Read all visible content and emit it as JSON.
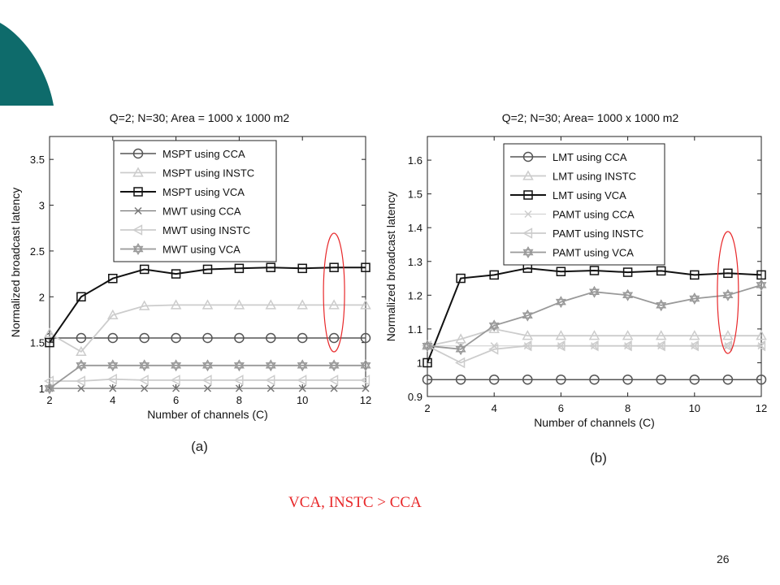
{
  "slide": {
    "caption": "VCA, INSTC > CCA",
    "page_number": "26",
    "accent_color": "#0e6b6b",
    "highlight_color": "#e8282a"
  },
  "chart_data": [
    {
      "type": "line",
      "panel_label": "(a)",
      "title": "Q=2; N=30; Area = 1000 x 1000 m2",
      "xlabel": "Number of channels (C)",
      "ylabel": "Normalized broadcast latency",
      "xlim": [
        2,
        12
      ],
      "ylim": [
        1,
        3.75
      ],
      "xticks": [
        2,
        4,
        6,
        8,
        10,
        12
      ],
      "yticks": [
        1,
        1.5,
        2,
        2.5,
        3,
        3.5
      ],
      "ytick_labels": [
        "1",
        "1.5",
        "2",
        "2.5",
        "3",
        "3.5"
      ],
      "grid": false,
      "legend_position": "top-center",
      "highlight_x": 11,
      "x": [
        2,
        3,
        4,
        5,
        6,
        7,
        8,
        9,
        10,
        11,
        12
      ],
      "series": [
        {
          "name": "MSPT using CCA",
          "marker": "circle",
          "color": "#555555",
          "width": 1.5,
          "values": [
            1.55,
            1.55,
            1.55,
            1.55,
            1.55,
            1.55,
            1.55,
            1.55,
            1.55,
            1.55,
            1.55
          ]
        },
        {
          "name": "MSPT using INSTC",
          "marker": "triangle-up",
          "color": "#cccccc",
          "width": 1.8,
          "values": [
            1.6,
            1.4,
            1.8,
            1.9,
            1.91,
            1.91,
            1.91,
            1.91,
            1.91,
            1.91,
            1.91
          ]
        },
        {
          "name": "MSPT using VCA",
          "marker": "square",
          "color": "#111111",
          "width": 2,
          "values": [
            1.5,
            2.0,
            2.2,
            2.3,
            2.25,
            2.3,
            2.31,
            2.32,
            2.31,
            2.32,
            2.32
          ]
        },
        {
          "name": "MWT using CCA",
          "marker": "x",
          "color": "#777777",
          "width": 1.2,
          "values": [
            1.0,
            1.0,
            1.0,
            1.0,
            1.0,
            1.0,
            1.0,
            1.0,
            1.0,
            1.0,
            1.0
          ]
        },
        {
          "name": "MWT using INSTC",
          "marker": "triangle-left",
          "color": "#cccccc",
          "width": 1.8,
          "values": [
            1.08,
            1.08,
            1.1,
            1.09,
            1.09,
            1.09,
            1.09,
            1.09,
            1.09,
            1.09,
            1.09
          ]
        },
        {
          "name": "MWT using VCA",
          "marker": "hexagram",
          "color": "#999999",
          "width": 1.8,
          "values": [
            1.0,
            1.25,
            1.25,
            1.25,
            1.25,
            1.25,
            1.25,
            1.25,
            1.25,
            1.25,
            1.25
          ]
        }
      ]
    },
    {
      "type": "line",
      "panel_label": "(b)",
      "title": "Q=2; N=30; Area= 1000 x 1000 m2",
      "xlabel": "Number of channels (C)",
      "ylabel": "Normalized broadcast latency",
      "xlim": [
        2,
        12
      ],
      "ylim": [
        0.9,
        1.67
      ],
      "xticks": [
        2,
        4,
        6,
        8,
        10,
        12
      ],
      "yticks": [
        0.9,
        1,
        1.1,
        1.2,
        1.3,
        1.4,
        1.5,
        1.6
      ],
      "ytick_labels": [
        "0.9",
        "1",
        "1.1",
        "1.2",
        "1.3",
        "1.4",
        "1.5",
        "1.6"
      ],
      "grid": false,
      "legend_position": "top-center",
      "highlight_x": 11,
      "x": [
        2,
        3,
        4,
        5,
        6,
        7,
        8,
        9,
        10,
        11,
        12
      ],
      "series": [
        {
          "name": "LMT using CCA",
          "marker": "circle",
          "color": "#555555",
          "width": 1.5,
          "values": [
            0.95,
            0.95,
            0.95,
            0.95,
            0.95,
            0.95,
            0.95,
            0.95,
            0.95,
            0.95,
            0.95
          ]
        },
        {
          "name": "LMT using INSTC",
          "marker": "triangle-up",
          "color": "#cccccc",
          "width": 1.8,
          "values": [
            1.05,
            1.07,
            1.1,
            1.08,
            1.08,
            1.08,
            1.08,
            1.08,
            1.08,
            1.08,
            1.08
          ]
        },
        {
          "name": "LMT using VCA",
          "marker": "square",
          "color": "#111111",
          "width": 2,
          "values": [
            1.0,
            1.25,
            1.26,
            1.28,
            1.27,
            1.273,
            1.268,
            1.272,
            1.26,
            1.265,
            1.26
          ]
        },
        {
          "name": "PAMT using CCA",
          "marker": "x",
          "color": "#cccccc",
          "width": 1,
          "values": [
            1.05,
            1.05,
            1.05,
            1.05,
            1.05,
            1.05,
            1.05,
            1.05,
            1.05,
            1.05,
            1.05
          ]
        },
        {
          "name": "PAMT using INSTC",
          "marker": "triangle-left",
          "color": "#cccccc",
          "width": 1.8,
          "values": [
            1.05,
            1.0,
            1.04,
            1.05,
            1.05,
            1.05,
            1.05,
            1.05,
            1.05,
            1.05,
            1.05
          ]
        },
        {
          "name": "PAMT using VCA",
          "marker": "hexagram",
          "color": "#999999",
          "width": 1.8,
          "values": [
            1.05,
            1.04,
            1.11,
            1.14,
            1.18,
            1.21,
            1.2,
            1.17,
            1.19,
            1.2,
            1.23
          ]
        }
      ]
    }
  ]
}
